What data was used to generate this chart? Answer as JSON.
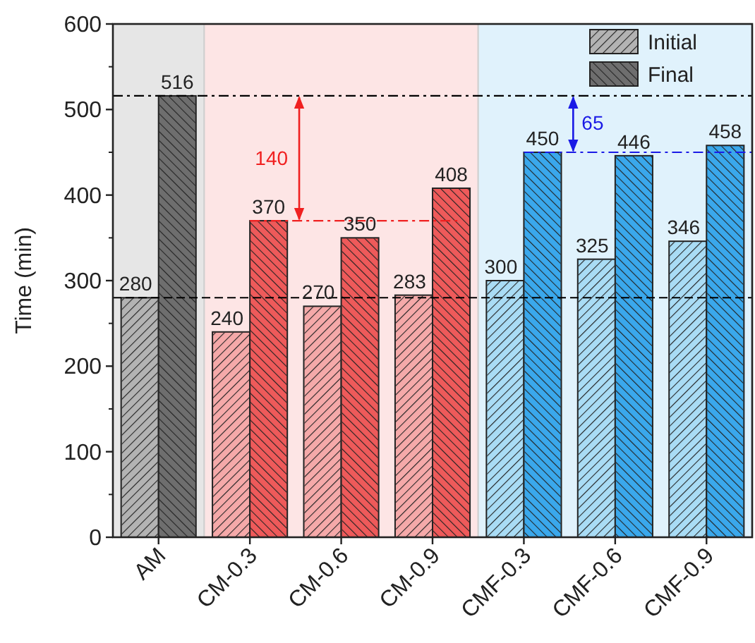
{
  "chart_data": {
    "type": "bar",
    "ylabel": "Time (min)",
    "categories": [
      "AM",
      "CM-0.3",
      "CM-0.6",
      "CM-0.9",
      "CMF-0.3",
      "CMF-0.6",
      "CMF-0.9"
    ],
    "series": [
      {
        "name": "Initial",
        "color": "#b3b3b3",
        "colors": [
          "#b3b3b3",
          "#f5a9a9",
          "#f5a9a9",
          "#f5a9a9",
          "#a9dcf5",
          "#a9dcf5",
          "#a9dcf5"
        ],
        "values": [
          280,
          240,
          270,
          283,
          300,
          325,
          346
        ]
      },
      {
        "name": "Final",
        "color": "#6e6e6e",
        "colors": [
          "#6e6e6e",
          "#ee5a5a",
          "#ee5a5a",
          "#ee5a5a",
          "#3aa8ec",
          "#3aa8ec",
          "#3aa8ec"
        ],
        "values": [
          516,
          370,
          350,
          408,
          450,
          446,
          458
        ]
      }
    ],
    "ylim": [
      0,
      600
    ],
    "yticks": [
      0,
      100,
      200,
      300,
      400,
      500,
      600
    ],
    "data_labels": true,
    "legend": "top right",
    "grid": false,
    "bands": [
      {
        "axis": "x",
        "from": "AM",
        "to": "AM",
        "color": "#e6e6e6"
      },
      {
        "axis": "x",
        "from": "CM-0.3",
        "to": "CM-0.9",
        "color": "#fde5e5"
      },
      {
        "axis": "x",
        "from": "CMF-0.3",
        "to": "CMF-0.9",
        "color": "#e0f2fc"
      }
    ],
    "ref_lines": [
      {
        "axis": "y",
        "value": 516,
        "color": "#000000",
        "line_style": "dashdot"
      },
      {
        "axis": "y",
        "value": 280,
        "color": "#000000",
        "line_style": "dashed"
      },
      {
        "axis": "y",
        "value": 370,
        "color": "#f02020",
        "line_style": "dashdot"
      },
      {
        "axis": "y",
        "value": 450,
        "color": "#1a1ae6",
        "line_style": "dashdot"
      }
    ],
    "annotations": [
      "140",
      "65"
    ]
  }
}
